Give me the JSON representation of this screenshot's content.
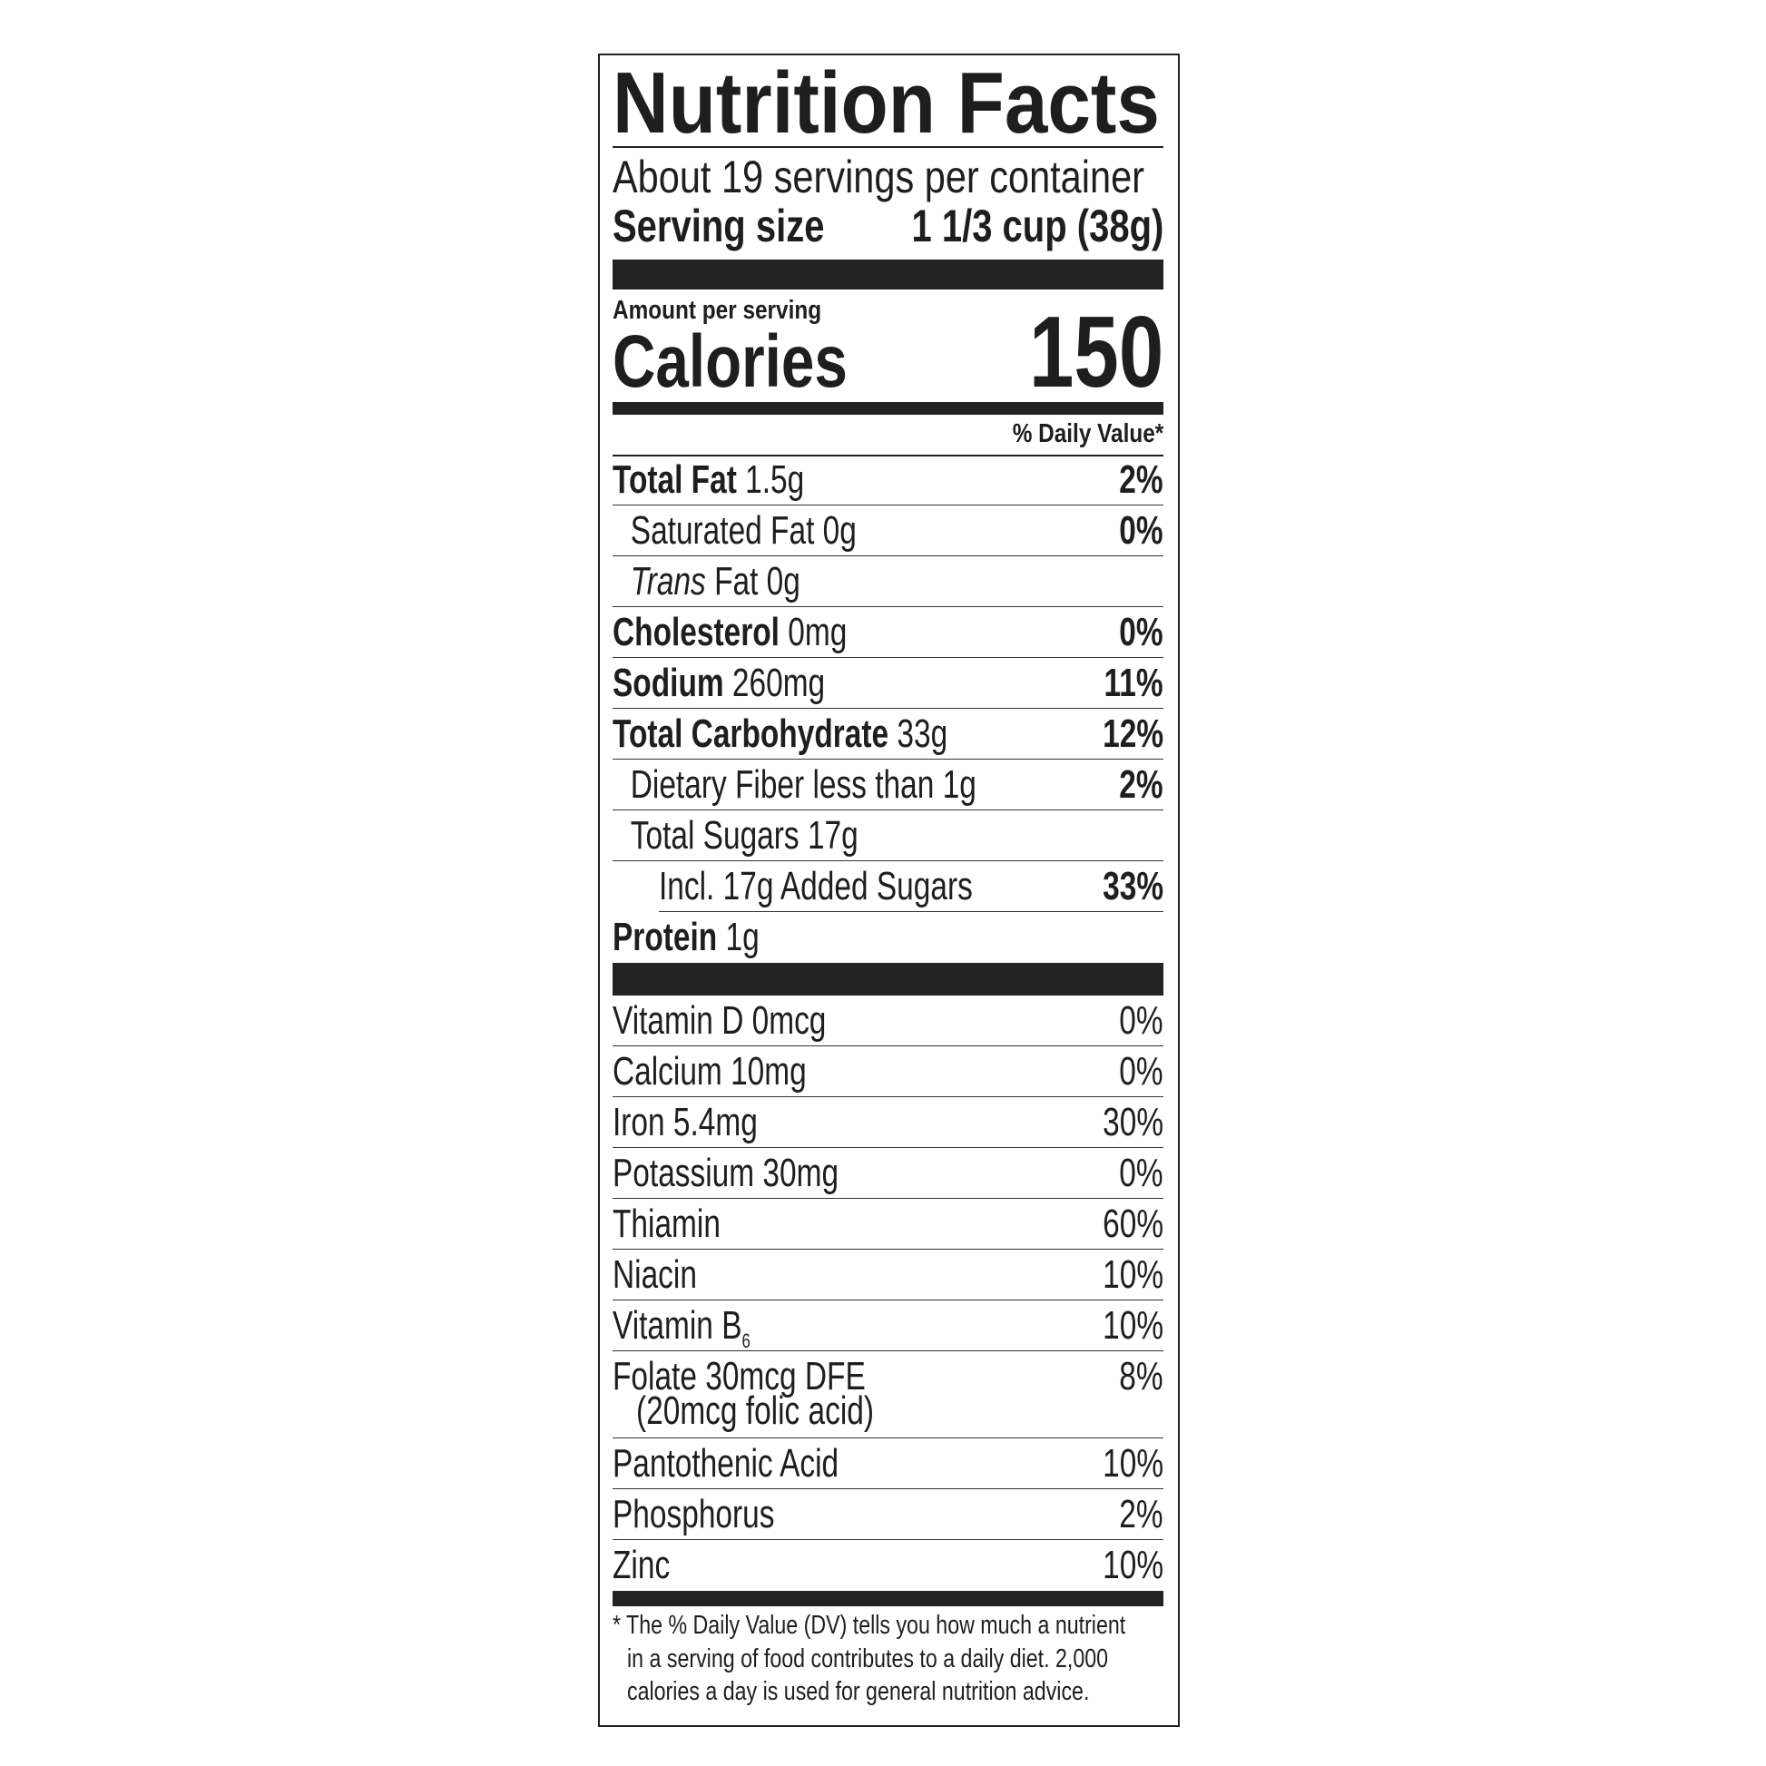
{
  "title": "Nutrition Facts",
  "servings_per_container": "About 19 servings per container",
  "serving_size_label": "Serving size",
  "serving_size_value": "1 1/3 cup (38g)",
  "amount_per_serving": "Amount per serving",
  "calories_label": "Calories",
  "calories_value": "150",
  "daily_value_header": "% Daily Value*",
  "nutrients": [
    {
      "name": "Total Fat",
      "amount": "1.5g",
      "dv": "2%",
      "bold": true,
      "level": 0
    },
    {
      "name": "Saturated Fat",
      "amount": "0g",
      "dv": "0%",
      "bold": false,
      "level": 1
    },
    {
      "name": "Trans",
      "name_suffix": "Fat",
      "amount": "0g",
      "dv": "",
      "bold": false,
      "italic_name": true,
      "level": 1
    },
    {
      "name": "Cholesterol",
      "amount": "0mg",
      "dv": "0%",
      "bold": true,
      "level": 0
    },
    {
      "name": "Sodium",
      "amount": "260mg",
      "dv": "11%",
      "bold": true,
      "level": 0
    },
    {
      "name": "Total Carbohydrate",
      "amount": "33g",
      "dv": "12%",
      "bold": true,
      "level": 0
    },
    {
      "name": "Dietary Fiber",
      "amount": "less than 1g",
      "dv": "2%",
      "bold": false,
      "level": 1
    },
    {
      "name": "Total Sugars",
      "amount": "17g",
      "dv": "",
      "bold": false,
      "level": 1
    },
    {
      "name": "Incl. 17g Added Sugars",
      "amount": "",
      "dv": "33%",
      "bold": false,
      "level": 2
    },
    {
      "name": "Protein",
      "amount": "1g",
      "dv": "",
      "bold": true,
      "level": 0
    }
  ],
  "vitamins": [
    {
      "name": "Vitamin D 0mcg",
      "dv": "0%"
    },
    {
      "name": "Calcium 10mg",
      "dv": "0%"
    },
    {
      "name": "Iron 5.4mg",
      "dv": "30%"
    },
    {
      "name": "Potassium 30mg",
      "dv": "0%"
    },
    {
      "name": "Thiamin",
      "dv": "60%"
    },
    {
      "name": "Niacin",
      "dv": "10%"
    },
    {
      "name": "Vitamin B",
      "subscript": "6",
      "dv": "10%"
    },
    {
      "name": "Folate 30mcg DFE",
      "second_line": "(20mcg folic acid)",
      "dv": "8%"
    },
    {
      "name": "Pantothenic Acid",
      "dv": "10%"
    },
    {
      "name": "Phosphorus",
      "dv": "2%"
    },
    {
      "name": "Zinc",
      "dv": "10%"
    }
  ],
  "footnote": [
    "* The % Daily Value (DV) tells you how much a nutrient",
    "in a serving of food contributes to a daily diet. 2,000",
    "calories a day is used for general nutrition advice."
  ]
}
